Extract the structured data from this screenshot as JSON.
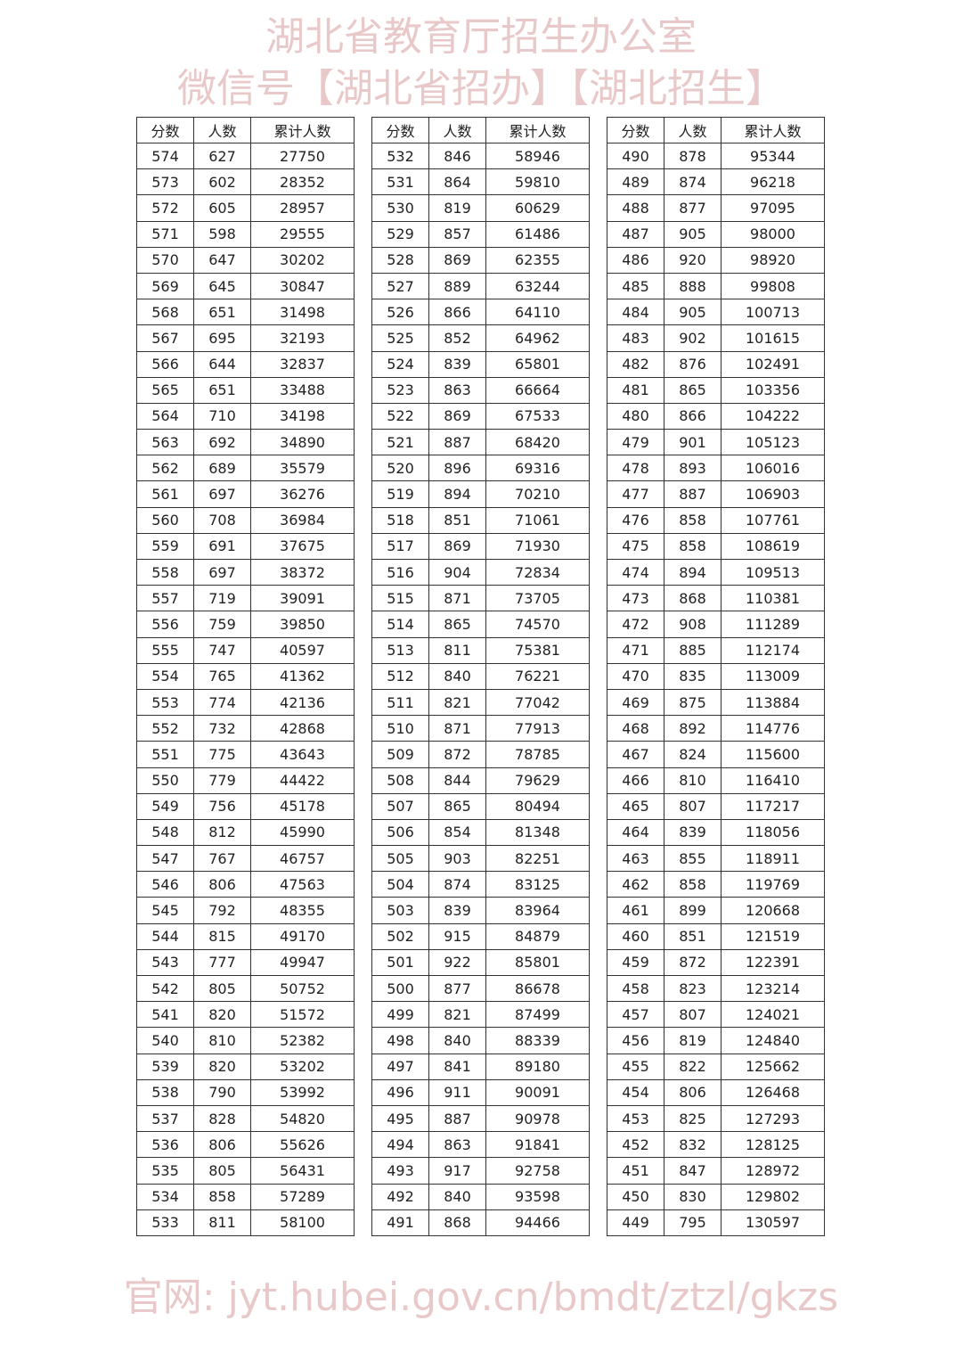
{
  "headers": [
    "分数",
    "人数",
    "累计人数"
  ],
  "tables": [
    [
      [
        "574",
        "627",
        "27750"
      ],
      [
        "573",
        "602",
        "28352"
      ],
      [
        "572",
        "605",
        "28957"
      ],
      [
        "571",
        "598",
        "29555"
      ],
      [
        "570",
        "647",
        "30202"
      ],
      [
        "569",
        "645",
        "30847"
      ],
      [
        "568",
        "651",
        "31498"
      ],
      [
        "567",
        "695",
        "32193"
      ],
      [
        "566",
        "644",
        "32837"
      ],
      [
        "565",
        "651",
        "33488"
      ],
      [
        "564",
        "710",
        "34198"
      ],
      [
        "563",
        "692",
        "34890"
      ],
      [
        "562",
        "689",
        "35579"
      ],
      [
        "561",
        "697",
        "36276"
      ],
      [
        "560",
        "708",
        "36984"
      ],
      [
        "559",
        "691",
        "37675"
      ],
      [
        "558",
        "697",
        "38372"
      ],
      [
        "557",
        "719",
        "39091"
      ],
      [
        "556",
        "759",
        "39850"
      ],
      [
        "555",
        "747",
        "40597"
      ],
      [
        "554",
        "765",
        "41362"
      ],
      [
        "553",
        "774",
        "42136"
      ],
      [
        "552",
        "732",
        "42868"
      ],
      [
        "551",
        "775",
        "43643"
      ],
      [
        "550",
        "779",
        "44422"
      ],
      [
        "549",
        "756",
        "45178"
      ],
      [
        "548",
        "812",
        "45990"
      ],
      [
        "547",
        "767",
        "46757"
      ],
      [
        "546",
        "806",
        "47563"
      ],
      [
        "545",
        "792",
        "48355"
      ],
      [
        "544",
        "815",
        "49170"
      ],
      [
        "543",
        "777",
        "49947"
      ],
      [
        "542",
        "805",
        "50752"
      ],
      [
        "541",
        "820",
        "51572"
      ],
      [
        "540",
        "810",
        "52382"
      ],
      [
        "539",
        "820",
        "53202"
      ],
      [
        "538",
        "790",
        "53992"
      ],
      [
        "537",
        "828",
        "54820"
      ],
      [
        "536",
        "806",
        "55626"
      ],
      [
        "535",
        "805",
        "56431"
      ],
      [
        "534",
        "858",
        "57289"
      ],
      [
        "533",
        "811",
        "58100"
      ]
    ],
    [
      [
        "532",
        "846",
        "58946"
      ],
      [
        "531",
        "864",
        "59810"
      ],
      [
        "530",
        "819",
        "60629"
      ],
      [
        "529",
        "857",
        "61486"
      ],
      [
        "528",
        "869",
        "62355"
      ],
      [
        "527",
        "889",
        "63244"
      ],
      [
        "526",
        "866",
        "64110"
      ],
      [
        "525",
        "852",
        "64962"
      ],
      [
        "524",
        "839",
        "65801"
      ],
      [
        "523",
        "863",
        "66664"
      ],
      [
        "522",
        "869",
        "67533"
      ],
      [
        "521",
        "887",
        "68420"
      ],
      [
        "520",
        "896",
        "69316"
      ],
      [
        "519",
        "894",
        "70210"
      ],
      [
        "518",
        "851",
        "71061"
      ],
      [
        "517",
        "869",
        "71930"
      ],
      [
        "516",
        "904",
        "72834"
      ],
      [
        "515",
        "871",
        "73705"
      ],
      [
        "514",
        "865",
        "74570"
      ],
      [
        "513",
        "811",
        "75381"
      ],
      [
        "512",
        "840",
        "76221"
      ],
      [
        "511",
        "821",
        "77042"
      ],
      [
        "510",
        "871",
        "77913"
      ],
      [
        "509",
        "872",
        "78785"
      ],
      [
        "508",
        "844",
        "79629"
      ],
      [
        "507",
        "865",
        "80494"
      ],
      [
        "506",
        "854",
        "81348"
      ],
      [
        "505",
        "903",
        "82251"
      ],
      [
        "504",
        "874",
        "83125"
      ],
      [
        "503",
        "839",
        "83964"
      ],
      [
        "502",
        "915",
        "84879"
      ],
      [
        "501",
        "922",
        "85801"
      ],
      [
        "500",
        "877",
        "86678"
      ],
      [
        "499",
        "821",
        "87499"
      ],
      [
        "498",
        "840",
        "88339"
      ],
      [
        "497",
        "841",
        "89180"
      ],
      [
        "496",
        "911",
        "90091"
      ],
      [
        "495",
        "887",
        "90978"
      ],
      [
        "494",
        "863",
        "91841"
      ],
      [
        "493",
        "917",
        "92758"
      ],
      [
        "492",
        "840",
        "93598"
      ],
      [
        "491",
        "868",
        "94466"
      ]
    ],
    [
      [
        "490",
        "878",
        "95344"
      ],
      [
        "489",
        "874",
        "96218"
      ],
      [
        "488",
        "877",
        "97095"
      ],
      [
        "487",
        "905",
        "98000"
      ],
      [
        "486",
        "920",
        "98920"
      ],
      [
        "485",
        "888",
        "99808"
      ],
      [
        "484",
        "905",
        "100713"
      ],
      [
        "483",
        "902",
        "101615"
      ],
      [
        "482",
        "876",
        "102491"
      ],
      [
        "481",
        "865",
        "103356"
      ],
      [
        "480",
        "866",
        "104222"
      ],
      [
        "479",
        "901",
        "105123"
      ],
      [
        "478",
        "893",
        "106016"
      ],
      [
        "477",
        "887",
        "106903"
      ],
      [
        "476",
        "858",
        "107761"
      ],
      [
        "475",
        "858",
        "108619"
      ],
      [
        "474",
        "894",
        "109513"
      ],
      [
        "473",
        "868",
        "110381"
      ],
      [
        "472",
        "908",
        "111289"
      ],
      [
        "471",
        "885",
        "112174"
      ],
      [
        "470",
        "835",
        "113009"
      ],
      [
        "469",
        "875",
        "113884"
      ],
      [
        "468",
        "892",
        "114776"
      ],
      [
        "467",
        "824",
        "115600"
      ],
      [
        "466",
        "810",
        "116410"
      ],
      [
        "465",
        "807",
        "117217"
      ],
      [
        "464",
        "839",
        "118056"
      ],
      [
        "463",
        "855",
        "118911"
      ],
      [
        "462",
        "858",
        "119769"
      ],
      [
        "461",
        "899",
        "120668"
      ],
      [
        "460",
        "851",
        "121519"
      ],
      [
        "459",
        "872",
        "122391"
      ],
      [
        "458",
        "823",
        "123214"
      ],
      [
        "457",
        "807",
        "124021"
      ],
      [
        "456",
        "819",
        "124840"
      ],
      [
        "455",
        "822",
        "125662"
      ],
      [
        "454",
        "806",
        "126468"
      ],
      [
        "453",
        "825",
        "127293"
      ],
      [
        "452",
        "832",
        "128125"
      ],
      [
        "451",
        "847",
        "128972"
      ],
      [
        "450",
        "830",
        "129802"
      ],
      [
        "449",
        "795",
        "130597"
      ]
    ]
  ],
  "watermark": {
    "line1": "湖北省教育厅招生办公室",
    "line2": "微信号【湖北省招办】【湖北招生】",
    "line3": "官网: jyt.hubei.gov.cn/bmdt/ztzl/gkzs",
    "color": "#d59a9a"
  }
}
